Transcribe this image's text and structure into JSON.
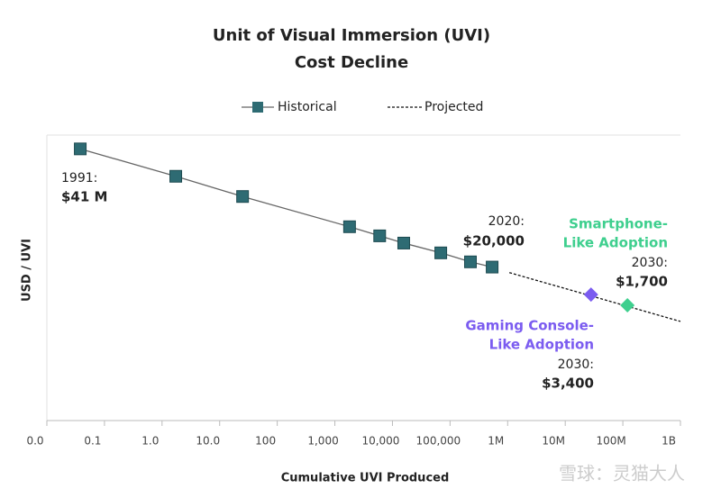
{
  "chart_data": {
    "type": "line",
    "title": [
      "Unit of Visual Immersion (UVI)",
      "Cost Decline"
    ],
    "xlabel": "Cumulative UVI Produced",
    "ylabel": "USD / UVI",
    "xscale": "log",
    "yscale": "log",
    "xlim": [
      0.01,
      1000000000
    ],
    "ylim": [
      1,
      100000000
    ],
    "xticks": [
      {
        "value": 0.01,
        "label": "0.0"
      },
      0.1,
      {
        "value": 1,
        "label": "1.0"
      },
      {
        "value": 10,
        "label": "10.0"
      },
      100,
      {
        "value": 1000,
        "label": "1,000"
      },
      {
        "value": 10000,
        "label": "10,000"
      },
      {
        "value": 100000,
        "label": "100,000"
      },
      {
        "value": 1000000,
        "label": "1M"
      },
      {
        "value": 10000000,
        "label": "10M"
      },
      {
        "value": 100000000,
        "label": "100M"
      },
      {
        "value": 1000000000,
        "label": "1B"
      }
    ],
    "legend": "top",
    "series": [
      {
        "name": "Historical",
        "color": "#2e6b73",
        "line_color": "#666666",
        "marker": "square",
        "x": [
          0.038,
          1.73,
          25,
          1800,
          6000,
          15700,
          69000,
          226000,
          538000
        ],
        "values": [
          41000000,
          7000000,
          1900000,
          270000,
          150000,
          94000,
          50000,
          28000,
          20000
        ]
      },
      {
        "name": "Projected",
        "color": "#111111",
        "dash": true,
        "x": [
          1070000,
          1000000000
        ],
        "values": [
          14000,
          600
        ]
      }
    ],
    "annotations": [
      {
        "year": "1991:",
        "label": "$41 M"
      },
      {
        "year": "2020:",
        "label": "$20,000"
      },
      {
        "title": [
          "Smartphone-",
          "Like Adoption"
        ],
        "year": "2030:",
        "label": "$1,700",
        "x": 120000000,
        "value": 1700,
        "color": "#3ecf8e"
      },
      {
        "title": [
          "Gaming Console-",
          "Like Adoption"
        ],
        "year": "2030:",
        "label": "$3,400",
        "x": 28000000,
        "value": 3400,
        "color": "#7b5cf0"
      }
    ]
  },
  "watermark": "雪球：灵猫大人"
}
